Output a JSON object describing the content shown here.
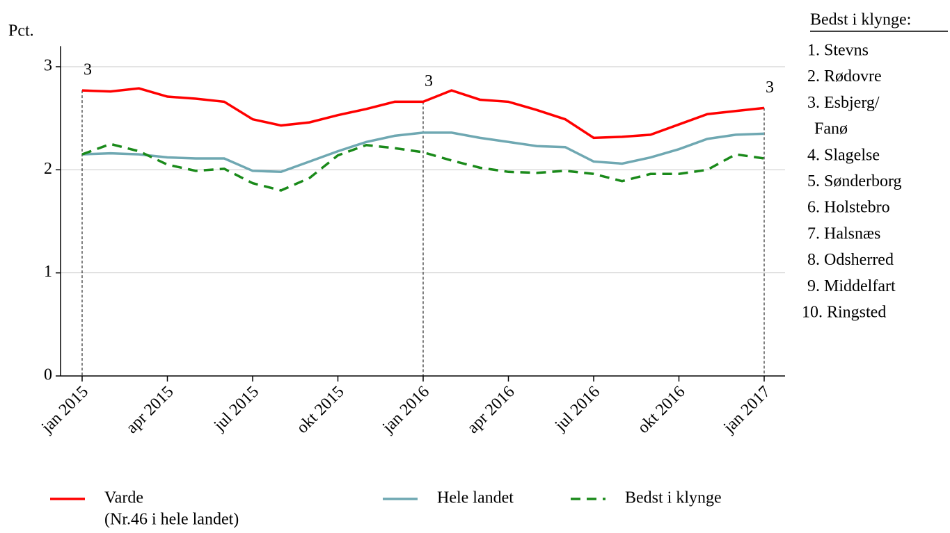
{
  "chart_data": {
    "type": "line",
    "y_label": "Pct.",
    "categories": [
      "jan 2015",
      null,
      null,
      "apr 2015",
      null,
      null,
      "jul 2015",
      null,
      null,
      "okt 2015",
      null,
      null,
      "jan 2016",
      null,
      null,
      "apr 2016",
      null,
      null,
      "jul 2016",
      null,
      null,
      "okt 2016",
      null,
      null,
      "jan 2017"
    ],
    "series": [
      {
        "name": "Varde",
        "color": "#ff0000",
        "dash": false,
        "values": [
          2.77,
          2.76,
          2.79,
          2.71,
          2.69,
          2.66,
          2.49,
          2.43,
          2.46,
          2.53,
          2.59,
          2.66,
          2.66,
          2.77,
          2.68,
          2.66,
          2.58,
          2.49,
          2.31,
          2.32,
          2.34,
          2.44,
          2.54,
          2.57,
          2.6
        ]
      },
      {
        "name": "Hele landet",
        "color": "#6fa8b2",
        "dash": false,
        "values": [
          2.15,
          2.16,
          2.15,
          2.12,
          2.11,
          2.11,
          1.99,
          1.98,
          2.08,
          2.18,
          2.27,
          2.33,
          2.36,
          2.36,
          2.31,
          2.27,
          2.23,
          2.22,
          2.08,
          2.06,
          2.12,
          2.2,
          2.3,
          2.34,
          2.35
        ]
      },
      {
        "name": "Bedst i klynge",
        "color": "#1a8a1a",
        "dash": true,
        "values": [
          2.15,
          2.25,
          2.18,
          2.05,
          1.99,
          2.01,
          1.87,
          1.8,
          1.92,
          2.14,
          2.24,
          2.21,
          2.17,
          2.09,
          2.02,
          1.98,
          1.97,
          1.99,
          1.96,
          1.89,
          1.96,
          1.96,
          2.0,
          2.15,
          2.11
        ]
      }
    ],
    "legend_note": "(Nr.46 i hele landet)",
    "annotations": [
      {
        "x": "jan 2015",
        "text": "3"
      },
      {
        "x": "jan 2016",
        "text": "3"
      },
      {
        "x": "jan 2017",
        "text": "3"
      }
    ],
    "ylim": [
      0,
      3.2
    ],
    "yticks": [
      0,
      1,
      2,
      3
    ],
    "grid": true,
    "side_panel": {
      "title": "Bedst i klynge:",
      "items": [
        [
          "1. Stevns"
        ],
        [
          "2. Rødovre"
        ],
        [
          "3. Esbjerg/",
          "Fanø"
        ],
        [
          "4. Slagelse"
        ],
        [
          "5. Sønderborg"
        ],
        [
          "6. Holstebro"
        ],
        [
          "7. Halsnæs"
        ],
        [
          "8. Odsherred"
        ],
        [
          "9. Middelfart"
        ],
        [
          "10. Ringsted"
        ]
      ]
    }
  }
}
